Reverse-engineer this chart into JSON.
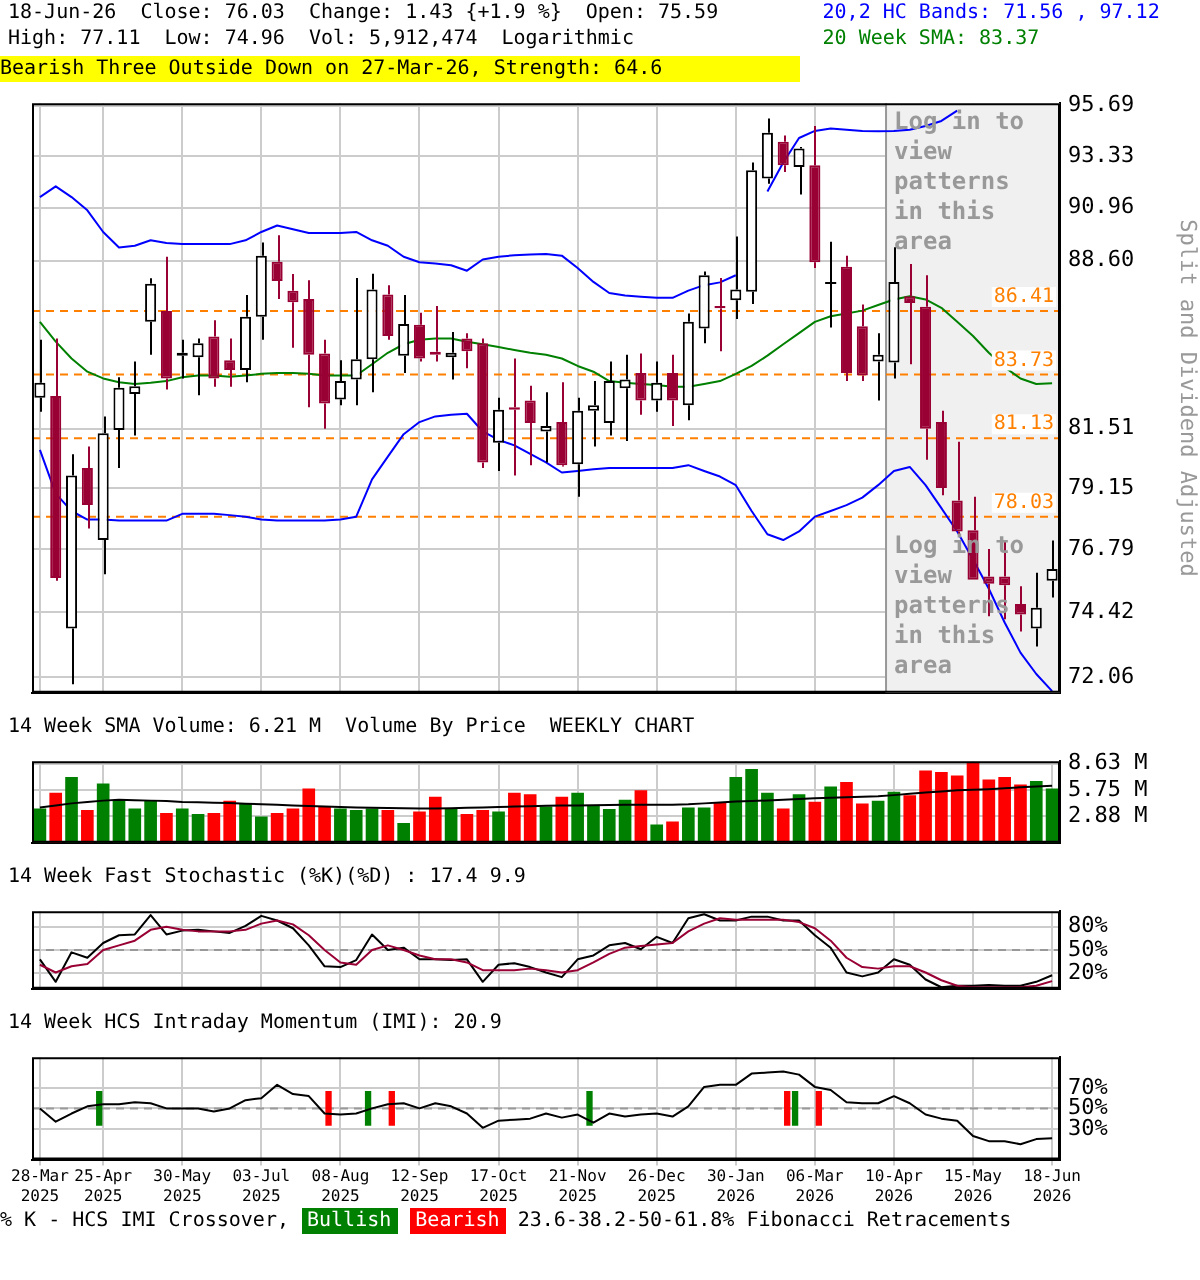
{
  "chart_data": [
    {
      "type": "candlestick",
      "subtitle": "Bearish Three Outside Down on 27-Mar-26, Strength: 64.6",
      "ylabel": "Split and Dividend Adjusted",
      "annotations": [
        "18-Jun-26",
        "Close: 76.03",
        "Change: 1.43 {+1.9 %}",
        "Open: 75.59",
        "High: 77.11",
        "Low: 74.96",
        "Vol: 5,912,474",
        "Logarithmic"
      ],
      "categories": [
        "28-Mar 2025",
        null,
        null,
        null,
        "25-Apr 2025",
        null,
        null,
        null,
        null,
        "30-May 2025",
        null,
        null,
        null,
        null,
        "03-Jul 2025",
        null,
        null,
        null,
        null,
        "08-Aug 2025",
        null,
        null,
        null,
        null,
        "12-Sep 2025",
        null,
        null,
        null,
        null,
        "17-Oct 2025",
        null,
        null,
        null,
        null,
        "21-Nov 2025",
        null,
        null,
        null,
        null,
        "26-Dec 2025",
        null,
        null,
        null,
        null,
        "30-Jan 2026",
        null,
        null,
        null,
        null,
        "06-Mar 2026",
        null,
        null,
        null,
        null,
        "10-Apr 2026",
        null,
        null,
        null,
        null,
        "15-May 2026",
        null,
        null,
        null,
        null,
        "18-Jun 2026"
      ],
      "ohlc": [
        [
          82.77,
          85.19,
          82.2,
          83.39
        ],
        [
          82.84,
          85.24,
          75.59,
          75.69
        ],
        [
          73.82,
          80.48,
          71.8,
          79.64
        ],
        [
          79.94,
          80.79,
          77.57,
          78.48
        ],
        [
          77.13,
          82.01,
          75.83,
          81.33
        ],
        [
          81.46,
          83.62,
          79.94,
          83.18
        ],
        [
          82.93,
          84.28,
          81.24,
          83.25
        ],
        [
          85.95,
          87.83,
          84.56,
          87.59
        ],
        [
          86.41,
          88.77,
          83.11,
          83.57
        ],
        [
          84.52,
          85.19,
          83.57,
          84.64
        ],
        [
          84.45,
          85.24,
          82.88,
          85.04
        ],
        [
          85.33,
          86.02,
          83.23,
          83.57
        ],
        [
          84.33,
          85.24,
          83.23,
          83.92
        ],
        [
          83.92,
          87.1,
          83.41,
          86.17
        ],
        [
          86.17,
          89.4,
          85.19,
          88.82
        ],
        [
          88.55,
          89.72,
          86.93,
          87.71
        ],
        [
          87.29,
          88.01,
          84.85,
          86.79
        ],
        [
          86.93,
          87.74,
          82.38,
          84.56
        ],
        [
          84.61,
          85.19,
          81.51,
          82.54
        ],
        [
          82.7,
          84.33,
          82.47,
          83.46
        ],
        [
          83.53,
          87.84,
          82.47,
          84.37
        ],
        [
          84.37,
          88.03,
          83.0,
          87.34
        ],
        [
          87.12,
          87.52,
          85.19,
          85.35
        ],
        [
          84.52,
          87.1,
          83.8,
          85.86
        ],
        [
          85.83,
          86.34,
          84.28,
          84.4
        ],
        [
          84.68,
          86.63,
          84.28,
          84.56
        ],
        [
          84.45,
          85.52,
          83.53,
          84.64
        ],
        [
          85.24,
          85.47,
          83.99,
          84.71
        ],
        [
          85.04,
          85.24,
          79.94,
          80.16
        ],
        [
          80.95,
          82.77,
          79.82,
          82.28
        ],
        [
          82.38,
          84.4,
          79.64,
          82.28
        ],
        [
          82.66,
          83.27,
          80.05,
          81.74
        ],
        [
          81.4,
          83.0,
          80.16,
          81.62
        ],
        [
          81.78,
          83.41,
          80.0,
          80.05
        ],
        [
          80.09,
          82.77,
          78.81,
          82.24
        ],
        [
          82.24,
          83.46,
          80.79,
          82.47
        ],
        [
          81.74,
          84.28,
          81.24,
          83.46
        ],
        [
          83.16,
          84.56,
          81.02,
          83.53
        ],
        [
          83.8,
          84.61,
          82.08,
          82.66
        ],
        [
          82.66,
          84.28,
          82.2,
          83.39
        ],
        [
          83.8,
          84.56,
          81.62,
          82.66
        ],
        [
          82.47,
          86.31,
          81.85,
          85.95
        ],
        [
          85.67,
          88.12,
          85.04,
          87.96
        ],
        [
          86.63,
          87.84,
          84.71,
          86.53
        ],
        [
          86.88,
          89.67,
          86.07,
          87.34
        ],
        [
          87.24,
          93.02,
          86.72,
          92.66
        ],
        [
          92.29,
          95.08,
          92.05,
          94.41
        ],
        [
          93.99,
          94.28,
          92.58,
          92.9
        ],
        [
          92.82,
          93.74,
          91.56,
          93.67
        ],
        [
          92.9,
          94.72,
          88.28,
          88.53
        ],
        [
          87.62,
          89.43,
          85.71,
          87.62
        ],
        [
          88.33,
          88.82,
          83.46,
          83.8
        ],
        [
          85.76,
          86.69,
          83.46,
          83.69
        ],
        [
          84.28,
          85.47,
          82.66,
          84.56
        ],
        [
          84.23,
          89.19,
          83.57,
          87.67
        ],
        [
          87.05,
          88.45,
          84.16,
          86.76
        ],
        [
          86.6,
          87.96,
          80.27,
          81.51
        ],
        [
          81.78,
          82.24,
          78.86,
          79.15
        ],
        [
          78.66,
          80.99,
          77.35,
          77.46
        ],
        [
          77.51,
          78.81,
          75.63,
          75.63
        ],
        [
          75.75,
          76.79,
          74.27,
          75.48
        ],
        [
          75.75,
          77.13,
          74.16,
          75.42
        ],
        [
          74.72,
          75.38,
          73.71,
          74.33
        ],
        [
          73.82,
          75.89,
          73.16,
          74.58
        ],
        [
          75.59,
          77.11,
          74.96,
          76.03
        ]
      ],
      "colors": [
        "#000000",
        "#990033",
        "#000000",
        "#990033",
        "#000000",
        "#000000",
        "#000000",
        "#000000",
        "#990033",
        "#000000",
        "#000000",
        "#990033",
        "#990033",
        "#000000",
        "#000000",
        "#990033",
        "#990033",
        "#990033",
        "#990033",
        "#000000",
        "#000000",
        "#000000",
        "#990033",
        "#000000",
        "#990033",
        "#990033",
        "#000000",
        "#990033",
        "#990033",
        "#000000",
        "#990033",
        "#990033",
        "#000000",
        "#990033",
        "#000000",
        "#000000",
        "#000000",
        "#000000",
        "#990033",
        "#000000",
        "#990033",
        "#000000",
        "#000000",
        "#990033",
        "#000000",
        "#000000",
        "#000000",
        "#990033",
        "#000000",
        "#990033",
        "#000000",
        "#990033",
        "#990033",
        "#000000",
        "#000000",
        "#990033",
        "#990033",
        "#990033",
        "#990033",
        "#990033",
        "#990033",
        "#990033",
        "#990033",
        "#000000",
        "#000000"
      ],
      "series": [
        {
          "name": "20,2 HC Bands: 71.56 , 97.12",
          "type": "line",
          "color": "#0000ff",
          "values": [
            91.44,
            91.93,
            91.44,
            90.84,
            89.87,
            89.18,
            89.26,
            89.5,
            89.38,
            89.33,
            89.33,
            89.33,
            89.33,
            89.5,
            89.87,
            90.16,
            89.99,
            89.82,
            89.82,
            89.82,
            89.87,
            89.5,
            89.26,
            88.77,
            88.53,
            88.48,
            88.4,
            88.16,
            88.65,
            88.77,
            88.84,
            88.87,
            88.89,
            88.82,
            88.28,
            87.67,
            87.19,
            87.08,
            87.03,
            86.98,
            86.98,
            87.29,
            87.53,
            87.65,
            87.96,
            null,
            91.69,
            93.02,
            94.16,
            94.49,
            94.6,
            94.55,
            94.49,
            94.47,
            94.49,
            94.55,
            94.72,
            94.96,
            95.45,
            null,
            null,
            null,
            null,
            null,
            null
          ]
        },
        {
          "type": "line",
          "color": "#0000ff",
          "values": [
            80.66,
            78.93,
            78.25,
            77.92,
            77.92,
            77.88,
            77.88,
            77.88,
            77.88,
            78.14,
            78.14,
            78.14,
            78.09,
            78.03,
            77.92,
            77.88,
            77.88,
            77.88,
            77.88,
            77.92,
            78.03,
            79.49,
            80.39,
            81.29,
            81.78,
            82.01,
            82.08,
            82.12,
            81.4,
            81.06,
            80.84,
            80.5,
            80.16,
            79.76,
            79.82,
            79.89,
            79.94,
            79.94,
            79.94,
            79.94,
            79.94,
            80.05,
            79.82,
            79.6,
            79.26,
            78.25,
            77.35,
            77.13,
            77.46,
            78.03,
            78.25,
            78.48,
            78.77,
            79.26,
            79.82,
            79.98,
            79.26,
            78.36,
            77.46,
            76.39,
            75.29,
            74.04,
            72.94,
            72.17,
            71.56
          ]
        },
        {
          "name": "20 Week SMA: 83.37",
          "type": "line",
          "color": "#008000",
          "values": [
            85.95,
            85.11,
            84.4,
            83.85,
            83.57,
            83.41,
            83.34,
            83.39,
            83.46,
            83.62,
            83.69,
            83.69,
            83.64,
            83.69,
            83.76,
            83.8,
            83.8,
            83.76,
            83.69,
            83.69,
            83.69,
            84.16,
            84.64,
            85.0,
            85.19,
            85.24,
            85.24,
            85.11,
            85.0,
            84.88,
            84.76,
            84.64,
            84.56,
            84.4,
            84.09,
            83.85,
            83.46,
            83.39,
            83.34,
            83.3,
            83.23,
            83.23,
            83.34,
            83.46,
            83.76,
            84.09,
            84.52,
            85.0,
            85.47,
            85.95,
            86.19,
            86.31,
            86.43,
            86.67,
            86.91,
            87.05,
            86.91,
            86.55,
            85.95,
            85.35,
            84.64,
            84.04,
            83.57,
            83.34,
            83.37
          ]
        }
      ],
      "ylim": [
        71.5,
        95.8
      ],
      "yticks": [
        72.06,
        74.42,
        76.79,
        79.15,
        81.51,
        {
          "value": 88.6,
          "label": "88.60"
        },
        90.96,
        93.33,
        95.69
      ],
      "log": true,
      "grid": true,
      "legend": "top right",
      "tick_labels": "y",
      "ref_lines": [
        {
          "axis": "y",
          "value": 86.41,
          "label": "86.41",
          "color": "#ff8000",
          "line_style": "dashed"
        },
        {
          "axis": "y",
          "value": 83.73,
          "label": "83.73",
          "color": "#ff8000",
          "line_style": "dashed"
        },
        {
          "axis": "y",
          "value": 81.13,
          "label": "81.13",
          "color": "#ff8000",
          "line_style": "dashed"
        },
        {
          "axis": "y",
          "value": 78.03,
          "label": "78.03",
          "color": "#ff8000",
          "line_style": "dashed"
        }
      ],
      "bands": [
        {
          "axis": "x",
          "from": "10-Apr 2026",
          "to": "18-Jun 2026",
          "label": "Log in to view patterns in this area",
          "color": "#f0f0f0"
        }
      ]
    },
    {
      "type": "bar",
      "title": "14 Week SMA Volume: 6.21 M",
      "annotations": [
        "Volume By Price",
        "WEEKLY CHART"
      ],
      "categories": [
        "28-Mar 2025",
        null,
        null,
        null,
        "25-Apr 2025",
        null,
        null,
        null,
        null,
        "30-May 2025",
        null,
        null,
        null,
        null,
        "03-Jul 2025",
        null,
        null,
        null,
        null,
        "08-Aug 2025",
        null,
        null,
        null,
        null,
        "12-Sep 2025",
        null,
        null,
        null,
        null,
        "17-Oct 2025",
        null,
        null,
        null,
        null,
        "21-Nov 2025",
        null,
        null,
        null,
        null,
        "26-Dec 2025",
        null,
        null,
        null,
        null,
        "30-Jan 2026",
        null,
        null,
        null,
        null,
        "06-Mar 2026",
        null,
        null,
        null,
        null,
        "10-Apr 2026",
        null,
        null,
        null,
        null,
        "15-May 2026",
        null,
        null,
        null,
        null,
        "18-Jun 2026"
      ],
      "series": [
        {
          "values": [
            3.75,
            5.46,
            7.17,
            3.59,
            6.46,
            4.58,
            3.75,
            4.58,
            3.26,
            3.75,
            3.15,
            3.26,
            4.58,
            4.3,
            2.87,
            3.26,
            3.75,
            5.91,
            3.97,
            3.75,
            3.59,
            3.75,
            3.59,
            2.15,
            3.42,
            5.02,
            3.75,
            3.15,
            3.59,
            3.42,
            5.46,
            5.3,
            3.97,
            5.02,
            5.46,
            4.03,
            3.7,
            4.69,
            5.74,
            1.99,
            2.32,
            3.86,
            3.86,
            4.42,
            7.17,
            8.06,
            5.46,
            3.75,
            5.3,
            4.47,
            6.13,
            6.62,
            4.3,
            4.58,
            5.57,
            5.19,
            7.89,
            7.73,
            7.34,
            8.77,
            6.9,
            7.17,
            6.35,
            6.73,
            5.91
          ],
          "colors": [
            "#008000",
            "#ff0000",
            "#008000",
            "#ff0000",
            "#008000",
            "#008000",
            "#008000",
            "#008000",
            "#ff0000",
            "#008000",
            "#008000",
            "#ff0000",
            "#ff0000",
            "#008000",
            "#008000",
            "#ff0000",
            "#ff0000",
            "#ff0000",
            "#ff0000",
            "#008000",
            "#008000",
            "#008000",
            "#ff0000",
            "#008000",
            "#ff0000",
            "#ff0000",
            "#008000",
            "#ff0000",
            "#ff0000",
            "#008000",
            "#ff0000",
            "#ff0000",
            "#008000",
            "#ff0000",
            "#008000",
            "#008000",
            "#008000",
            "#008000",
            "#ff0000",
            "#008000",
            "#ff0000",
            "#008000",
            "#008000",
            "#ff0000",
            "#008000",
            "#008000",
            "#008000",
            "#ff0000",
            "#008000",
            "#ff0000",
            "#008000",
            "#ff0000",
            "#ff0000",
            "#008000",
            "#008000",
            "#ff0000",
            "#ff0000",
            "#ff0000",
            "#ff0000",
            "#ff0000",
            "#ff0000",
            "#ff0000",
            "#ff0000",
            "#008000",
            "#008000"
          ]
        },
        {
          "type": "line",
          "color": "#000000",
          "values": [
            3.86,
            4.08,
            4.3,
            4.45,
            4.6,
            4.69,
            4.65,
            4.6,
            4.55,
            4.45,
            4.42,
            4.38,
            4.33,
            4.26,
            4.2,
            4.14,
            4.08,
            4.02,
            3.96,
            3.9,
            3.86,
            3.83,
            3.8,
            3.78,
            3.75,
            3.75,
            3.78,
            3.82,
            3.86,
            3.9,
            3.95,
            4.0,
            4.03,
            4.06,
            4.08,
            4.1,
            4.12,
            4.14,
            4.14,
            4.14,
            4.14,
            4.2,
            4.3,
            4.4,
            4.5,
            4.55,
            4.62,
            4.69,
            4.78,
            4.86,
            4.9,
            4.96,
            5.02,
            5.08,
            5.2,
            5.35,
            5.48,
            5.6,
            5.72,
            5.78,
            5.85,
            5.95,
            6.05,
            6.15,
            6.21
          ]
        }
      ],
      "ylim": [
        0,
        8.9
      ],
      "yticks": [
        {
          "value": 2.88,
          "label": "2.88 M"
        },
        {
          "value": 5.75,
          "label": "5.75 M"
        },
        {
          "value": 8.63,
          "label": "8.63 M"
        }
      ],
      "grid": true,
      "tick_labels": "y"
    },
    {
      "type": "line",
      "title": "14 Week Fast Stochastic (%K)(%D) : 17.4 9.9",
      "categories": [
        "28-Mar 2025",
        null,
        null,
        null,
        "25-Apr 2025",
        null,
        null,
        null,
        null,
        "30-May 2025",
        null,
        null,
        null,
        null,
        "03-Jul 2025",
        null,
        null,
        null,
        null,
        "08-Aug 2025",
        null,
        null,
        null,
        null,
        "12-Sep 2025",
        null,
        null,
        null,
        null,
        "17-Oct 2025",
        null,
        null,
        null,
        null,
        "21-Nov 2025",
        null,
        null,
        null,
        null,
        "26-Dec 2025",
        null,
        null,
        null,
        null,
        "30-Jan 2026",
        null,
        null,
        null,
        null,
        "06-Mar 2026",
        null,
        null,
        null,
        null,
        "10-Apr 2026",
        null,
        null,
        null,
        null,
        "15-May 2026",
        null,
        null,
        null,
        null,
        "18-Jun 2026"
      ],
      "series": [
        {
          "color": "#990033",
          "values": [
            31,
            21,
            29,
            32,
            50,
            56,
            62,
            76,
            80,
            76,
            74,
            74,
            74,
            76,
            84,
            88,
            83,
            69,
            50,
            34,
            31,
            50,
            56,
            50,
            43,
            38,
            38,
            34,
            24,
            24,
            24,
            26,
            24,
            21,
            24,
            34,
            45,
            53,
            55,
            57,
            59,
            74,
            84,
            91,
            89,
            89,
            89,
            89,
            86,
            78,
            62,
            40,
            28,
            26,
            29,
            29,
            21,
            11,
            4,
            2,
            2,
            2,
            2,
            4,
            9.9
          ]
        },
        {
          "color": "#000000",
          "values": [
            38,
            9,
            47,
            40,
            59,
            69,
            70,
            95,
            70,
            75,
            76,
            74,
            72,
            81,
            94,
            88,
            78,
            56,
            29,
            28,
            37,
            70,
            50,
            53,
            38,
            38,
            37,
            38,
            9,
            31,
            33,
            28,
            21,
            15,
            38,
            43,
            56,
            59,
            51,
            67,
            59,
            91,
            96,
            88,
            88,
            93,
            93,
            88,
            88,
            69,
            53,
            21,
            16,
            21,
            38,
            31,
            12,
            2,
            4,
            4,
            5,
            4,
            4,
            9,
            17.4
          ]
        }
      ],
      "ylim": [
        0,
        100
      ],
      "yticks": [
        {
          "value": 20,
          "label": "20%"
        },
        {
          "value": 50,
          "label": "50%"
        },
        {
          "value": 80,
          "label": "80%"
        }
      ],
      "grid": true,
      "tick_labels": "y",
      "ref_lines": [
        {
          "axis": "y",
          "value": 50,
          "color": "#999999",
          "line_style": "dashed"
        }
      ]
    },
    {
      "type": "line",
      "title": "14 Week HCS Intraday Momentum (IMI): 20.9",
      "annotations": [
        "% K - HCS IMI Crossover,",
        "23.6-38.2-50-61.8% Fibonacci Retracements"
      ],
      "categories": [
        "28-Mar 2025",
        null,
        null,
        null,
        "25-Apr 2025",
        null,
        null,
        null,
        null,
        "30-May 2025",
        null,
        null,
        null,
        null,
        "03-Jul 2025",
        null,
        null,
        null,
        null,
        "08-Aug 2025",
        null,
        null,
        null,
        null,
        "12-Sep 2025",
        null,
        null,
        null,
        null,
        "17-Oct 2025",
        null,
        null,
        null,
        null,
        "21-Nov 2025",
        null,
        null,
        null,
        null,
        "26-Dec 2025",
        null,
        null,
        null,
        null,
        "30-Jan 2026",
        null,
        null,
        null,
        null,
        "06-Mar 2026",
        null,
        null,
        null,
        null,
        "10-Apr 2026",
        null,
        null,
        null,
        null,
        "15-May 2026",
        null,
        null,
        null,
        null,
        "18-Jun 2026"
      ],
      "series": [
        {
          "color": "#000000",
          "values": [
            50,
            37,
            45,
            52,
            54,
            54,
            56,
            55,
            50,
            50,
            50,
            47,
            50,
            58,
            60,
            73,
            64,
            62,
            45,
            44,
            45,
            50,
            54,
            55,
            50,
            55,
            52,
            45,
            31,
            38,
            39,
            40,
            45,
            41,
            44,
            36,
            45,
            42,
            44,
            45,
            42,
            52,
            71,
            73,
            73,
            84,
            85,
            86,
            83,
            71,
            68,
            56,
            55,
            55,
            62,
            55,
            44,
            40,
            38,
            23,
            18,
            18,
            15,
            20,
            20.9
          ]
        },
        {
          "name": "Bullish",
          "type": "bar",
          "color": "#008000",
          "values": [
            null,
            null,
            null,
            null,
            34,
            null,
            null,
            null,
            null,
            null,
            null,
            null,
            null,
            null,
            null,
            null,
            null,
            null,
            null,
            null,
            null,
            34,
            null,
            null,
            null,
            null,
            null,
            null,
            null,
            null,
            null,
            null,
            null,
            null,
            null,
            34,
            null,
            null,
            null,
            null,
            null,
            null,
            null,
            null,
            null,
            null,
            null,
            null,
            34,
            null,
            null,
            null,
            null,
            null,
            null,
            null,
            null,
            null,
            null,
            null,
            null,
            null,
            null,
            null,
            null
          ],
          "base": [
            null,
            null,
            null,
            null,
            33,
            null,
            null,
            null,
            null,
            null,
            null,
            null,
            null,
            null,
            null,
            null,
            null,
            null,
            null,
            null,
            null,
            33,
            null,
            null,
            null,
            null,
            null,
            null,
            null,
            null,
            null,
            null,
            null,
            null,
            null,
            33,
            null,
            null,
            null,
            null,
            null,
            null,
            null,
            null,
            null,
            null,
            null,
            null,
            33,
            null,
            null,
            null,
            null,
            null,
            null,
            null,
            null,
            null,
            null,
            null,
            null,
            null,
            null,
            null,
            null
          ]
        },
        {
          "name": "Bearish",
          "type": "bar",
          "color": "#ff0000",
          "values": [
            null,
            null,
            null,
            null,
            null,
            null,
            null,
            null,
            null,
            null,
            null,
            null,
            null,
            null,
            null,
            null,
            null,
            null,
            34,
            null,
            null,
            null,
            34,
            null,
            null,
            null,
            null,
            null,
            null,
            null,
            null,
            null,
            null,
            null,
            null,
            null,
            null,
            null,
            null,
            null,
            null,
            null,
            null,
            null,
            null,
            null,
            null,
            34,
            null,
            34,
            null,
            null,
            null,
            null,
            null,
            null,
            null,
            null,
            null,
            null,
            null,
            null,
            null,
            null,
            null
          ],
          "base": [
            null,
            null,
            null,
            null,
            null,
            null,
            null,
            null,
            null,
            null,
            null,
            null,
            null,
            null,
            null,
            null,
            null,
            null,
            33,
            null,
            null,
            null,
            33,
            null,
            null,
            null,
            null,
            null,
            null,
            null,
            null,
            null,
            null,
            null,
            null,
            null,
            null,
            null,
            null,
            null,
            null,
            null,
            null,
            null,
            null,
            null,
            null,
            33,
            null,
            33,
            null,
            null,
            null,
            null,
            null,
            null,
            null,
            null,
            null,
            null,
            null,
            null,
            null,
            null,
            null
          ]
        }
      ],
      "ylim": [
        0,
        100
      ],
      "yticks": [
        {
          "value": 30,
          "label": "30%"
        },
        {
          "value": 50,
          "label": "50%"
        },
        {
          "value": 70,
          "label": "70%"
        }
      ],
      "grid": true,
      "legend": "bottom",
      "ref_lines": [
        {
          "axis": "y",
          "value": 50,
          "color": "#999999",
          "line_style": "dashed"
        }
      ]
    }
  ]
}
